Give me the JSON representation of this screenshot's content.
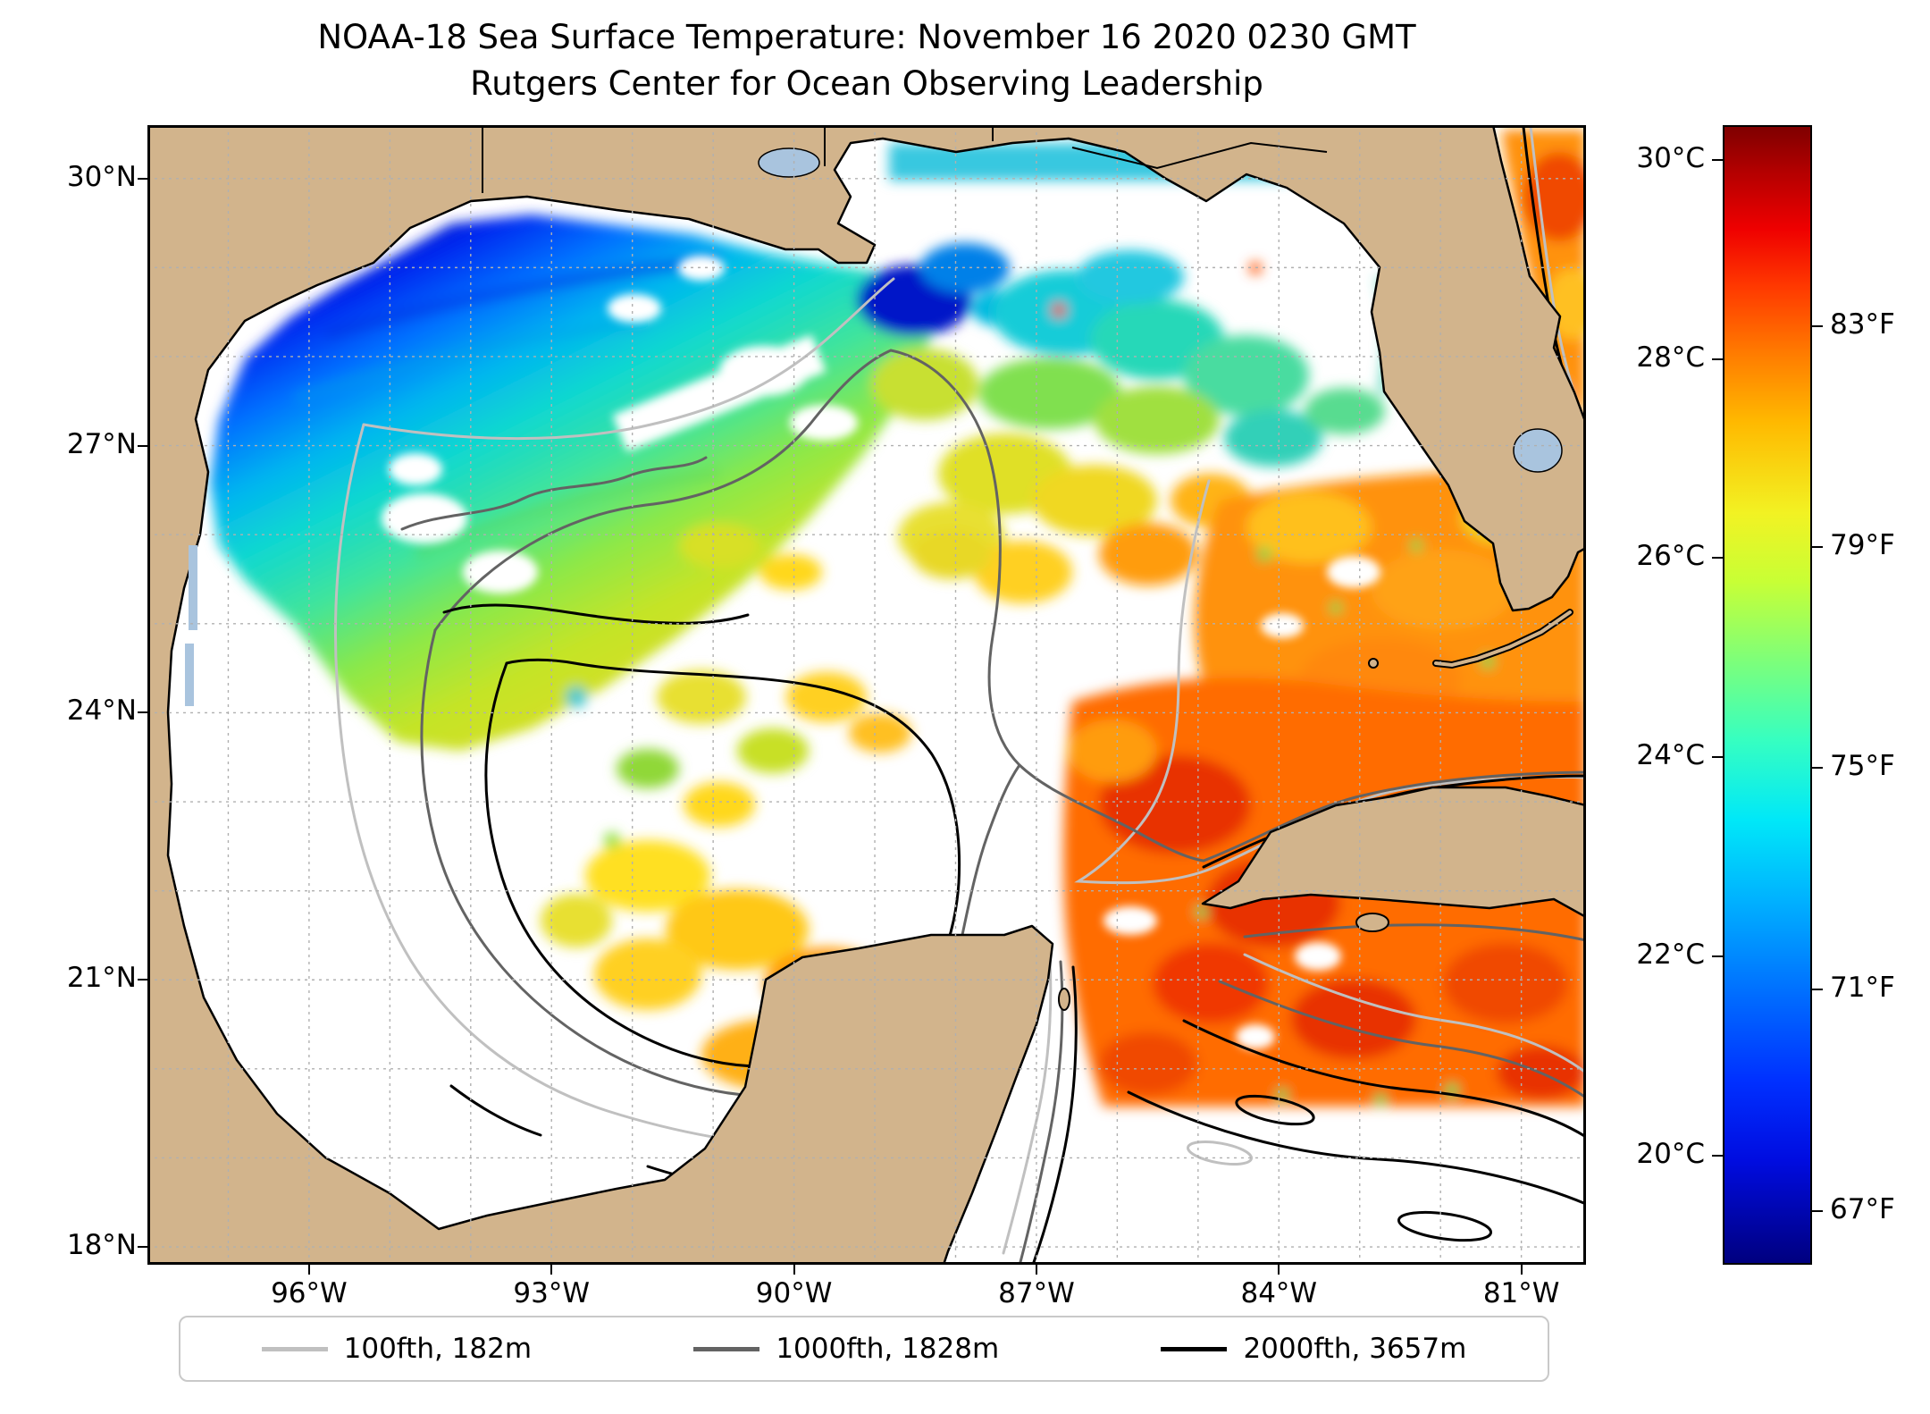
{
  "chart_data": {
    "type": "heatmap",
    "title": "NOAA-18 Sea Surface Temperature: November 16 2020 0230 GMT",
    "subtitle": "Rutgers Center for Ocean Observing Leadership",
    "x_axis": {
      "range": [
        -98.0,
        -80.2
      ],
      "grid_step_deg": 1,
      "ticks": [
        {
          "value": -96,
          "label": "96°W"
        },
        {
          "value": -93,
          "label": "93°W"
        },
        {
          "value": -90,
          "label": "90°W"
        },
        {
          "value": -87,
          "label": "87°W"
        },
        {
          "value": -84,
          "label": "84°W"
        },
        {
          "value": -81,
          "label": "81°W"
        }
      ]
    },
    "y_axis": {
      "range": [
        17.8,
        30.6
      ],
      "grid_step_deg": 1,
      "ticks": [
        {
          "value": 30,
          "label": "30°N"
        },
        {
          "value": 27,
          "label": "27°N"
        },
        {
          "value": 24,
          "label": "24°N"
        },
        {
          "value": 21,
          "label": "21°N"
        },
        {
          "value": 18,
          "label": "18°N"
        }
      ]
    },
    "colorbar": {
      "units_left": "°C",
      "units_right": "°F",
      "vmin_c": 18.9,
      "vmax_c": 30.35,
      "colormap": "jet",
      "ticks_c": [
        {
          "value": 30,
          "label": "30°C"
        },
        {
          "value": 28,
          "label": "28°C"
        },
        {
          "value": 26,
          "label": "26°C"
        },
        {
          "value": 24,
          "label": "24°C"
        },
        {
          "value": 22,
          "label": "22°C"
        },
        {
          "value": 20,
          "label": "20°C"
        }
      ],
      "ticks_f": [
        {
          "value_c": 28.33,
          "label": "83°F"
        },
        {
          "value_c": 26.11,
          "label": "79°F"
        },
        {
          "value_c": 23.89,
          "label": "75°F"
        },
        {
          "value_c": 21.67,
          "label": "71°F"
        },
        {
          "value_c": 19.44,
          "label": "67°F"
        }
      ]
    },
    "legend": [
      {
        "label": "100fth, 182m",
        "color": "#c0c0c0"
      },
      {
        "label": "1000fth, 1828m",
        "color": "#636363"
      },
      {
        "label": "2000fth, 3657m",
        "color": "#000000"
      }
    ],
    "field_samples": [
      {
        "lon": -96.5,
        "lat": 28.7,
        "sst_c": 19.0
      },
      {
        "lon": -94.5,
        "lat": 29.0,
        "sst_c": 19.5
      },
      {
        "lon": -95.5,
        "lat": 27.5,
        "sst_c": 22.0
      },
      {
        "lon": -93.5,
        "lat": 28.0,
        "sst_c": 23.0
      },
      {
        "lon": -92.0,
        "lat": 27.0,
        "sst_c": 24.5
      },
      {
        "lon": -89.5,
        "lat": 28.8,
        "sst_c": 20.5
      },
      {
        "lon": -88.5,
        "lat": 29.8,
        "sst_c": 23.0
      },
      {
        "lon": -87.5,
        "lat": 28.5,
        "sst_c": 25.5
      },
      {
        "lon": -86.5,
        "lat": 27.5,
        "sst_c": 26.0
      },
      {
        "lon": -84.5,
        "lat": 26.0,
        "sst_c": 27.5
      },
      {
        "lon": -82.5,
        "lat": 25.5,
        "sst_c": 27.5
      },
      {
        "lon": -85.5,
        "lat": 23.0,
        "sst_c": 29.0
      },
      {
        "lon": -84.0,
        "lat": 21.5,
        "sst_c": 29.5
      },
      {
        "lon": -82.0,
        "lat": 22.0,
        "sst_c": 29.0
      },
      {
        "lon": -91.5,
        "lat": 21.5,
        "sst_c": 27.0
      },
      {
        "lon": -92.5,
        "lat": 23.0,
        "sst_c": 26.0
      },
      {
        "lon": -90.5,
        "lat": 24.5,
        "sst_c": 26.0
      }
    ],
    "no_data_color": "#ffffff",
    "land_color": "#d2b48c",
    "lake_color": "#a9c4de",
    "grid_color": "#b0b0b0"
  }
}
